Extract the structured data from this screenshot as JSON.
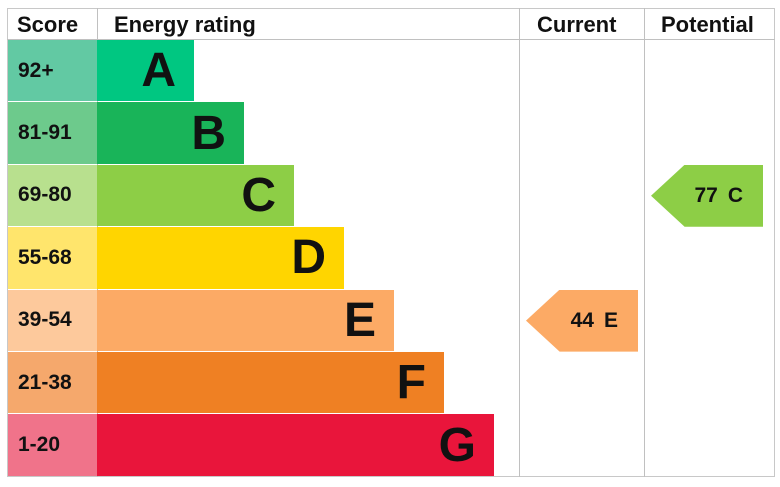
{
  "chart_data": {
    "type": "bar",
    "headers": {
      "score": "Score",
      "rating": "Energy rating",
      "current": "Current",
      "potential": "Potential"
    },
    "bands": [
      {
        "letter": "A",
        "range": "92+",
        "color": "#00c781",
        "score_color": "#62c9a3"
      },
      {
        "letter": "B",
        "range": "81-91",
        "color": "#19b459",
        "score_color": "#6dca8c"
      },
      {
        "letter": "C",
        "range": "69-80",
        "color": "#8dce46",
        "score_color": "#b8e08e"
      },
      {
        "letter": "D",
        "range": "55-68",
        "color": "#ffd500",
        "score_color": "#ffe56c"
      },
      {
        "letter": "E",
        "range": "39-54",
        "color": "#fcaa65",
        "score_color": "#fdc99c"
      },
      {
        "letter": "F",
        "range": "21-38",
        "color": "#ef8023",
        "score_color": "#f5a86c"
      },
      {
        "letter": "G",
        "range": "1-20",
        "color": "#e9153b",
        "score_color": "#f0738a"
      }
    ],
    "current": {
      "value": "44",
      "band": "E",
      "color": "#fcaa65"
    },
    "potential": {
      "value": "77",
      "band": "C",
      "color": "#8dce46"
    }
  }
}
